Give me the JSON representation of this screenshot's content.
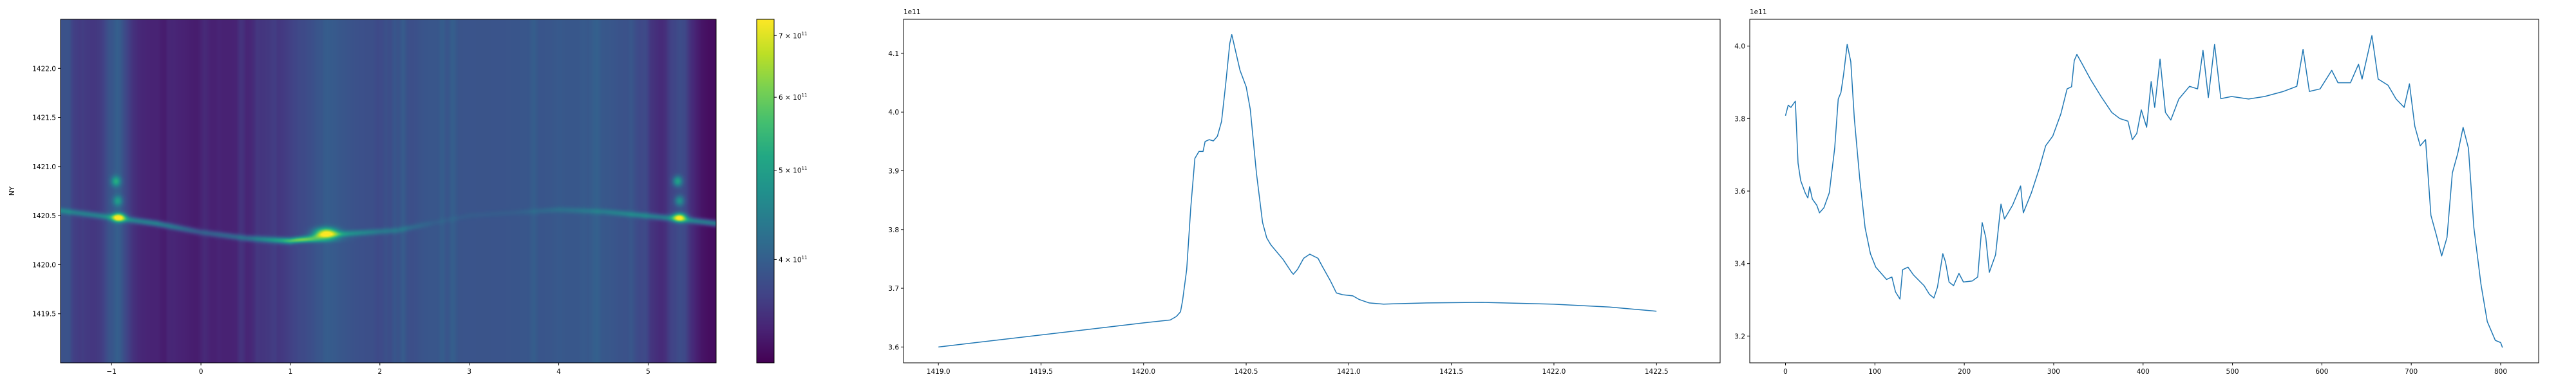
{
  "chart_data": [
    {
      "type": "heatmap",
      "ylabel": "NY",
      "xlabel": "",
      "xlim": [
        -1.57,
        5.76
      ],
      "ylim": [
        1419.0,
        1422.5
      ],
      "xticks": [
        -1,
        0,
        1,
        2,
        3,
        4,
        5
      ],
      "xtick_labels": [
        "−1",
        "0",
        "1",
        "2",
        "3",
        "4",
        "5"
      ],
      "yticks": [
        1419.5,
        1420.0,
        1420.5,
        1421.0,
        1421.5,
        1422.0
      ],
      "ytick_labels": [
        "1419.5",
        "1420.0",
        "1420.5",
        "1421.0",
        "1421.5",
        "1422.0"
      ],
      "colormap": "viridis",
      "colorbar": {
        "scale": "log",
        "range": [
          309000000000.0,
          729000000000.0
        ],
        "ticks": [
          400000000000.0,
          500000000000.0,
          600000000000.0,
          700000000000.0
        ],
        "tick_mantissas": [
          "4",
          "5",
          "6",
          "7"
        ],
        "tick_base": "× 10",
        "tick_exponent": "11"
      },
      "ridge": {
        "x": [
          -1.57,
          -0.9,
          -0.5,
          0.0,
          0.5,
          1.0,
          1.4,
          2.2,
          3.0,
          4.0,
          4.5,
          5.3,
          5.76
        ],
        "y": [
          1420.55,
          1420.47,
          1420.42,
          1420.33,
          1420.27,
          1420.24,
          1420.3,
          1420.35,
          1420.5,
          1420.56,
          1420.54,
          1420.47,
          1420.42
        ]
      },
      "peaks": [
        {
          "x": -0.92,
          "y": 1420.48,
          "value": 720000000000.0
        },
        {
          "x": 1.4,
          "y": 1420.32,
          "value": 700000000000.0
        },
        {
          "x": 5.35,
          "y": 1420.48,
          "value": 700000000000.0
        },
        {
          "x": -0.95,
          "y": 1420.85,
          "value": 500000000000.0
        },
        {
          "x": 5.33,
          "y": 1420.85,
          "value": 500000000000.0
        }
      ]
    },
    {
      "type": "line",
      "offset_text": "1e11",
      "xlim": [
        1418.83,
        1422.81
      ],
      "ylim": [
        3.573,
        4.158
      ],
      "xticks": [
        1419.0,
        1419.5,
        1420.0,
        1420.5,
        1421.0,
        1421.5,
        1422.0,
        1422.5
      ],
      "xtick_labels": [
        "1419.0",
        "1419.5",
        "1420.0",
        "1420.5",
        "1421.0",
        "1421.5",
        "1422.0",
        "1422.5"
      ],
      "yticks": [
        3.6,
        3.7,
        3.8,
        3.9,
        4.0,
        4.1
      ],
      "ytick_labels": [
        "3.6",
        "3.7",
        "3.8",
        "3.9",
        "4.0",
        "4.1"
      ],
      "color": "#1f77b4",
      "x": [
        1419.0,
        1420.0,
        1420.13,
        1420.16,
        1420.18,
        1420.19,
        1420.21,
        1420.23,
        1420.25,
        1420.27,
        1420.29,
        1420.3,
        1420.32,
        1420.34,
        1420.36,
        1420.38,
        1420.4,
        1420.42,
        1420.43,
        1420.47,
        1420.5,
        1420.52,
        1420.55,
        1420.58,
        1420.6,
        1420.62,
        1420.68,
        1420.72,
        1420.73,
        1420.75,
        1420.78,
        1420.81,
        1420.85,
        1420.87,
        1420.91,
        1420.94,
        1420.97,
        1421.02,
        1421.05,
        1421.1,
        1421.17,
        1421.38,
        1421.65,
        1421.99,
        1422.27,
        1422.5
      ],
      "y": [
        3.6,
        3.641,
        3.646,
        3.652,
        3.66,
        3.679,
        3.732,
        3.837,
        3.921,
        3.933,
        3.933,
        3.95,
        3.953,
        3.951,
        3.959,
        3.984,
        4.047,
        4.117,
        4.132,
        4.071,
        4.043,
        4.005,
        3.896,
        3.812,
        3.786,
        3.774,
        3.749,
        3.728,
        3.724,
        3.732,
        3.751,
        3.758,
        3.751,
        3.738,
        3.713,
        3.692,
        3.689,
        3.687,
        3.681,
        3.675,
        3.673,
        3.675,
        3.676,
        3.673,
        3.668,
        3.661
      ]
    },
    {
      "type": "line",
      "offset_text": "1e11",
      "xlim": [
        -40,
        842.5
      ],
      "ylim": [
        3.126,
        4.074
      ],
      "xticks": [
        0,
        100,
        200,
        300,
        400,
        500,
        600,
        700,
        800
      ],
      "xtick_labels": [
        "0",
        "100",
        "200",
        "300",
        "400",
        "500",
        "600",
        "700",
        "800"
      ],
      "yticks": [
        3.2,
        3.4,
        3.6,
        3.8,
        4.0
      ],
      "ytick_labels": [
        "3.2",
        "3.4",
        "3.6",
        "3.8",
        "4.0"
      ],
      "color": "#1f77b4",
      "x": [
        0,
        3,
        6,
        9,
        11,
        14,
        17,
        22,
        25,
        27,
        30,
        35,
        38,
        43,
        49,
        55,
        59,
        62,
        65,
        69,
        73,
        77,
        83,
        89,
        95,
        101,
        107,
        113,
        119,
        123,
        128,
        131,
        137,
        143,
        151,
        155,
        161,
        166,
        170,
        176,
        179,
        183,
        188,
        194,
        199,
        209,
        215,
        220,
        224,
        228,
        235,
        241,
        245,
        254,
        263,
        266,
        275,
        284,
        291,
        299,
        308,
        315,
        320,
        323,
        326,
        332,
        341,
        353,
        365,
        374,
        383,
        388,
        393,
        398,
        404,
        409,
        413,
        419,
        425,
        431,
        440,
        452,
        461,
        467,
        473,
        480,
        487,
        499,
        518,
        536,
        557,
        572,
        579,
        586,
        598,
        611,
        618,
        632,
        641,
        645,
        656,
        663,
        674,
        683,
        692,
        698,
        704,
        710,
        716,
        722,
        728,
        734,
        740,
        746,
        752,
        758,
        764,
        770,
        778,
        785,
        794,
        800,
        802
      ],
      "y": [
        3.808,
        3.837,
        3.831,
        3.841,
        3.848,
        3.677,
        3.629,
        3.595,
        3.581,
        3.612,
        3.578,
        3.561,
        3.54,
        3.554,
        3.595,
        3.718,
        3.854,
        3.872,
        3.923,
        4.005,
        3.957,
        3.8,
        3.636,
        3.499,
        3.427,
        3.39,
        3.373,
        3.356,
        3.363,
        3.322,
        3.302,
        3.383,
        3.39,
        3.369,
        3.349,
        3.339,
        3.315,
        3.305,
        3.335,
        3.427,
        3.404,
        3.349,
        3.339,
        3.373,
        3.349,
        3.352,
        3.363,
        3.513,
        3.472,
        3.376,
        3.424,
        3.564,
        3.523,
        3.561,
        3.614,
        3.54,
        3.595,
        3.663,
        3.725,
        3.752,
        3.813,
        3.882,
        3.888,
        3.96,
        3.977,
        3.95,
        3.909,
        3.861,
        3.817,
        3.8,
        3.793,
        3.742,
        3.759,
        3.824,
        3.776,
        3.902,
        3.831,
        3.964,
        3.817,
        3.796,
        3.854,
        3.889,
        3.882,
        3.988,
        3.858,
        4.005,
        3.855,
        3.861,
        3.854,
        3.861,
        3.875,
        3.889,
        3.991,
        3.875,
        3.882,
        3.933,
        3.899,
        3.899,
        3.95,
        3.909,
        4.029,
        3.909,
        3.892,
        3.854,
        3.831,
        3.896,
        3.779,
        3.725,
        3.742,
        3.533,
        3.479,
        3.421,
        3.472,
        3.65,
        3.704,
        3.776,
        3.718,
        3.499,
        3.342,
        3.24,
        3.188,
        3.182,
        3.168
      ]
    }
  ]
}
